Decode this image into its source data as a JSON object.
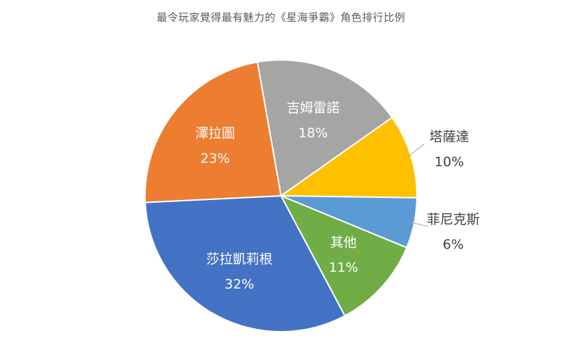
{
  "chart_data": {
    "type": "pie",
    "title": "最令玩家覺得最有魅力的《星海爭霸》角色排行比例",
    "start_angle_deg": -10,
    "slices": [
      {
        "label": "吉姆雷諾",
        "percent_label": "18%",
        "value": 18,
        "color": "#A5A5A5",
        "label_color": "#ffffff",
        "label_position": "inside"
      },
      {
        "label": "塔薩達",
        "percent_label": "10%",
        "value": 10,
        "color": "#FFC000",
        "label_color": "#404040",
        "label_position": "outside"
      },
      {
        "label": "菲尼克斯",
        "percent_label": "6%",
        "value": 6,
        "color": "#5B9BD5",
        "label_color": "#404040",
        "label_position": "outside"
      },
      {
        "label": "其他",
        "percent_label": "11%",
        "value": 11,
        "color": "#70AD47",
        "label_color": "#ffffff",
        "label_position": "inside"
      },
      {
        "label": "莎拉凱莉根",
        "percent_label": "32%",
        "value": 32,
        "color": "#4472C4",
        "label_color": "#ffffff",
        "label_position": "inside"
      },
      {
        "label": "澤拉圖",
        "percent_label": "23%",
        "value": 23,
        "color": "#ED7D31",
        "label_color": "#ffffff",
        "label_position": "inside"
      }
    ]
  }
}
